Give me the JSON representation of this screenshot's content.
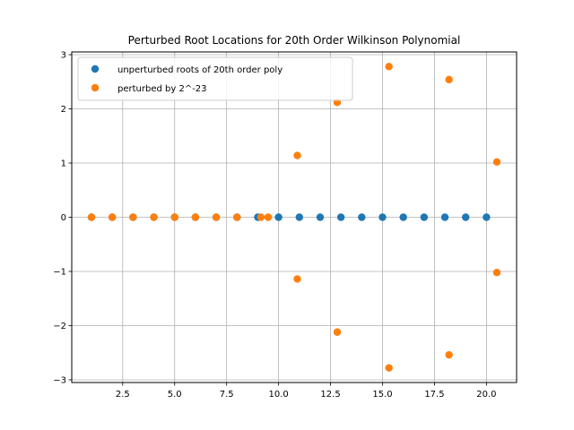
{
  "chart_data": {
    "type": "scatter",
    "title": "Perturbed Root Locations for 20th Order Wilkinson Polynomial",
    "xlabel": "",
    "ylabel": "",
    "xlim": [
      0.05,
      21.45
    ],
    "ylim": [
      -3.05,
      3.05
    ],
    "xticks": [
      2.5,
      5.0,
      7.5,
      10.0,
      12.5,
      15.0,
      17.5,
      20.0
    ],
    "xtick_labels": [
      "2.5",
      "5.0",
      "7.5",
      "10.0",
      "12.5",
      "15.0",
      "17.5",
      "20.0"
    ],
    "yticks": [
      -3,
      -2,
      -1,
      0,
      1,
      2,
      3
    ],
    "ytick_labels": [
      "−3",
      "−2",
      "−1",
      "0",
      "1",
      "2",
      "3"
    ],
    "grid": true,
    "legend_position": "upper-left",
    "series": [
      {
        "name": "unperturbed roots of 20th order poly",
        "color": "#1f77b4",
        "points": [
          [
            1,
            0
          ],
          [
            2,
            0
          ],
          [
            3,
            0
          ],
          [
            4,
            0
          ],
          [
            5,
            0
          ],
          [
            6,
            0
          ],
          [
            7,
            0
          ],
          [
            8,
            0
          ],
          [
            9,
            0
          ],
          [
            10,
            0
          ],
          [
            11,
            0
          ],
          [
            12,
            0
          ],
          [
            13,
            0
          ],
          [
            14,
            0
          ],
          [
            15,
            0
          ],
          [
            16,
            0
          ],
          [
            17,
            0
          ],
          [
            18,
            0
          ],
          [
            19,
            0
          ],
          [
            20,
            0
          ]
        ]
      },
      {
        "name": "perturbed by 2^-23",
        "color": "#ff7f0e",
        "points": [
          [
            1.0,
            0
          ],
          [
            2.0,
            0
          ],
          [
            3.0,
            0
          ],
          [
            4.0,
            0
          ],
          [
            5.0,
            0
          ],
          [
            6.0,
            0
          ],
          [
            7.0,
            0
          ],
          [
            8.0,
            0
          ],
          [
            9.15,
            0
          ],
          [
            9.5,
            0
          ],
          [
            10.9,
            1.14
          ],
          [
            10.9,
            -1.14
          ],
          [
            12.82,
            2.12
          ],
          [
            12.82,
            -2.12
          ],
          [
            15.31,
            2.78
          ],
          [
            15.31,
            -2.78
          ],
          [
            18.2,
            2.54
          ],
          [
            18.2,
            -2.54
          ],
          [
            20.5,
            1.02
          ],
          [
            20.5,
            -1.02
          ]
        ]
      }
    ]
  }
}
